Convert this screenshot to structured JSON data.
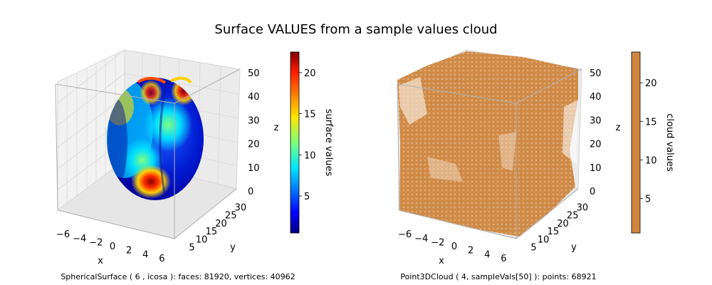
{
  "figure": {
    "title": "Surface VALUES from a sample values cloud"
  },
  "chart_data": [
    {
      "type": "3d-surface",
      "xlabel": "x",
      "ylabel": "y",
      "zlabel": "z",
      "xticks": [
        "−6",
        "−4",
        "−2",
        "0",
        "2",
        "4",
        "6"
      ],
      "yticks": [
        "5",
        "10",
        "15",
        "20",
        "25",
        "30"
      ],
      "zticks": [
        "0",
        "10",
        "20",
        "30",
        "40",
        "50"
      ],
      "colorbar": {
        "label": "surface values",
        "colormap": "jet",
        "ticks": [
          "5",
          "10",
          "15",
          "20"
        ],
        "range": [
          0.5,
          22.5
        ]
      },
      "caption": "SphericalSurface ( 6 , icosa ):  faces: 81920,  vertices: 40962"
    },
    {
      "type": "3d-scatter",
      "xlabel": "x",
      "ylabel": "y",
      "zlabel": "z",
      "xticks": [
        "−6",
        "−4",
        "−2",
        "0",
        "2",
        "4",
        "6"
      ],
      "yticks": [
        "5",
        "10",
        "15",
        "20",
        "25",
        "30"
      ],
      "zticks": [
        "0",
        "10",
        "20",
        "30",
        "40",
        "50"
      ],
      "point_color": "#cd853f",
      "colorbar": {
        "label": "cloud values",
        "color": "#cd853f",
        "ticks": [
          "5",
          "10",
          "15",
          "20"
        ],
        "range": [
          0.5,
          24
        ]
      },
      "caption": "Point3DCloud ( 4, sampleVals[50] ):  points: 68921"
    }
  ]
}
